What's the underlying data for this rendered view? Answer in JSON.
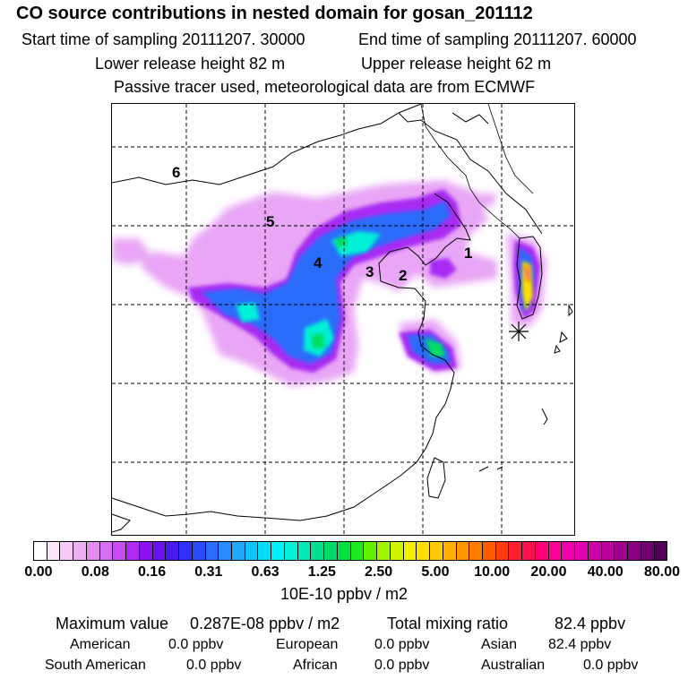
{
  "header": {
    "title": "CO  source contributions in nested domain for gosan_201112",
    "start_label": "Start time of sampling 20111207. 30000",
    "end_label": "End time of sampling 20111207. 60000",
    "lower_label": "Lower release height   82 m",
    "upper_label": "Upper release height   62 m",
    "note": "Passive tracer used, meteorological data are from ECMWF"
  },
  "chart_data": {
    "type": "heatmap",
    "title": "CO  source contributions in nested domain for gosan_201112",
    "region_labels": [
      "1",
      "2",
      "3",
      "4",
      "5",
      "6"
    ],
    "receptor_marker": "gosan",
    "grid": true,
    "colorbar": {
      "tick_labels": [
        "0.00",
        "0.08",
        "0.16",
        "0.31",
        "0.63",
        "1.25",
        "2.50",
        "5.00",
        "10.00",
        "20.00",
        "40.00",
        "80.00"
      ],
      "unit": "10E-10 ppbv / m2",
      "colors": [
        "#ffffff",
        "#fbe5fb",
        "#f5cbf5",
        "#efb0f3",
        "#e48ff0",
        "#d86ef0",
        "#c84cf0",
        "#b028f2",
        "#8a12f2",
        "#6a10f0",
        "#4a18f0",
        "#3030f4",
        "#2a4cf8",
        "#2a6cfa",
        "#2a8cfc",
        "#20a8fc",
        "#10c4fc",
        "#00dcfc",
        "#00f0f8",
        "#00f0d8",
        "#00e8b8",
        "#00e090",
        "#00d868",
        "#00e040",
        "#20e820",
        "#60f000",
        "#a0f400",
        "#d0f400",
        "#f0f000",
        "#ffe000",
        "#ffc800",
        "#ffb000",
        "#ff9800",
        "#ff7c00",
        "#ff5c00",
        "#ff3c10",
        "#ff2030",
        "#ff1050",
        "#ff0078",
        "#ff0098",
        "#f000a8",
        "#e000b0",
        "#cc00a8",
        "#b8009c",
        "#a0008c",
        "#880080",
        "#6e0070",
        "#520058"
      ]
    }
  },
  "footer": {
    "max_label": "Maximum value",
    "max_value": "0.287E-08 ppbv / m2",
    "total_label": "Total mixing ratio",
    "total_value": "82.4 ppbv",
    "regions": [
      {
        "name": "American",
        "value": "0.0 ppbv"
      },
      {
        "name": "European",
        "value": "0.0 ppbv"
      },
      {
        "name": "Asian",
        "value": "82.4 ppbv"
      },
      {
        "name": "South American",
        "value": "0.0 ppbv"
      },
      {
        "name": "African",
        "value": "0.0 ppbv"
      },
      {
        "name": "Australian",
        "value": "0.0 ppbv"
      }
    ]
  }
}
